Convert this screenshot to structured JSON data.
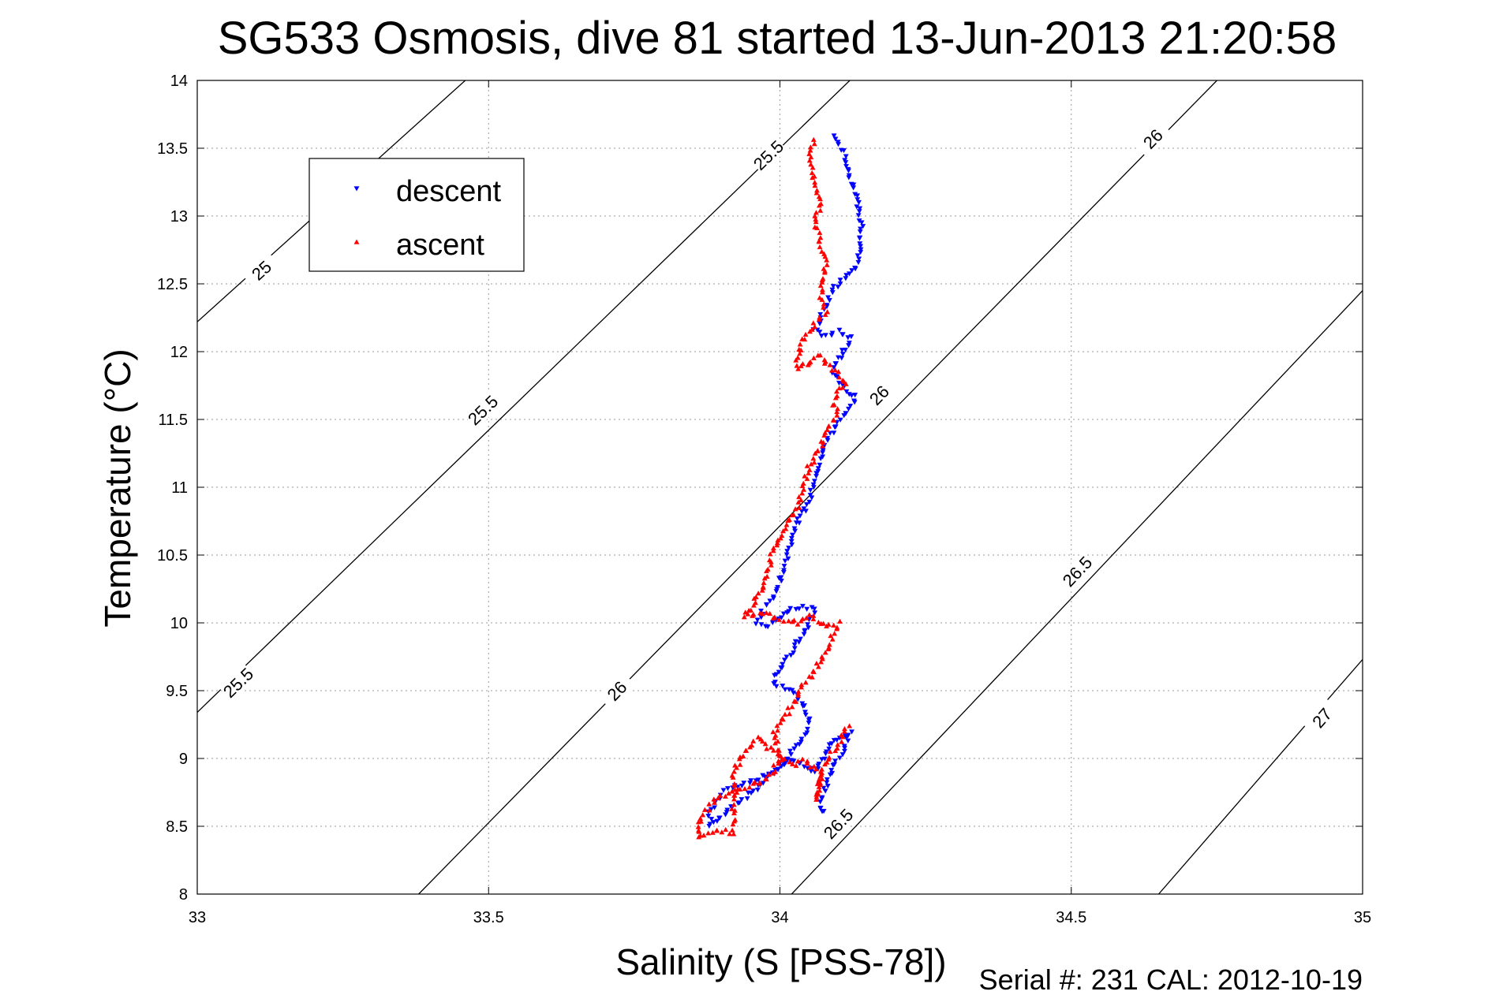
{
  "chart_data": {
    "type": "scatter",
    "title": "SG533 Osmosis, dive 81 started 13-Jun-2013 21:20:58",
    "xlabel": "Salinity (S [PSS-78])",
    "ylabel": "Temperature (°C)",
    "xlim": [
      33,
      35
    ],
    "ylim": [
      8,
      14
    ],
    "xticks": [
      33,
      33.5,
      34,
      34.5,
      35
    ],
    "xtick_labels": [
      "33",
      "33.5",
      "34",
      "34.5",
      "35"
    ],
    "yticks": [
      8,
      8.5,
      9,
      9.5,
      10,
      10.5,
      11,
      11.5,
      12,
      12.5,
      13,
      13.5,
      14
    ],
    "ytick_labels": [
      "8",
      "8.5",
      "9",
      "9.5",
      "10",
      "10.5",
      "11",
      "11.5",
      "12",
      "12.5",
      "13",
      "13.5",
      "14"
    ],
    "grid": true,
    "legend_position": "top-left",
    "footer": "Serial #: 231  CAL: 2012-10-19",
    "contours": [
      {
        "label": "25",
        "points": [
          [
            33,
            12.22
          ],
          [
            33.46,
            14
          ]
        ],
        "label_positions": [
          [
            33.11,
            12.6
          ]
        ]
      },
      {
        "label": "25.5",
        "points": [
          [
            33,
            9.34
          ],
          [
            34.12,
            14
          ]
        ],
        "label_positions": [
          [
            33.07,
            9.56
          ],
          [
            33.49,
            11.57
          ],
          [
            33.98,
            13.45
          ]
        ]
      },
      {
        "label": "26",
        "points": [
          [
            33.38,
            8
          ],
          [
            34.75,
            14
          ]
        ],
        "label_positions": [
          [
            33.72,
            9.5
          ],
          [
            34.17,
            11.68
          ],
          [
            34.64,
            13.57
          ]
        ]
      },
      {
        "label": "26.5",
        "points": [
          [
            34.02,
            8
          ],
          [
            35,
            12.45
          ]
        ],
        "label_positions": [
          [
            34.1,
            8.52
          ],
          [
            34.51,
            10.38
          ]
        ]
      },
      {
        "label": "27",
        "points": [
          [
            34.65,
            8
          ],
          [
            35,
            9.73
          ]
        ],
        "label_positions": [
          [
            34.93,
            9.3
          ]
        ]
      }
    ],
    "series": [
      {
        "name": "descent",
        "marker": "triangle-down",
        "color": "#0000ff",
        "path": [
          [
            34.09,
            13.58
          ],
          [
            34.1,
            13.55
          ],
          [
            34.11,
            13.45
          ],
          [
            34.12,
            13.3
          ],
          [
            34.13,
            13.15
          ],
          [
            34.14,
            12.95
          ],
          [
            34.14,
            12.75
          ],
          [
            34.13,
            12.6
          ],
          [
            34.11,
            12.55
          ],
          [
            34.09,
            12.45
          ],
          [
            34.08,
            12.35
          ],
          [
            34.07,
            12.25
          ],
          [
            34.06,
            12.15
          ],
          [
            34.08,
            12.12
          ],
          [
            34.1,
            12.15
          ],
          [
            34.12,
            12.1
          ],
          [
            34.11,
            12.0
          ],
          [
            34.1,
            11.95
          ],
          [
            34.09,
            11.85
          ],
          [
            34.1,
            11.78
          ],
          [
            34.12,
            11.7
          ],
          [
            34.13,
            11.65
          ],
          [
            34.12,
            11.58
          ],
          [
            34.1,
            11.48
          ],
          [
            34.08,
            11.35
          ],
          [
            34.07,
            11.2
          ],
          [
            34.06,
            11.05
          ],
          [
            34.05,
            10.9
          ],
          [
            34.03,
            10.75
          ],
          [
            34.02,
            10.6
          ],
          [
            34.01,
            10.45
          ],
          [
            34.0,
            10.3
          ],
          [
            33.99,
            10.2
          ],
          [
            33.97,
            10.1
          ],
          [
            33.96,
            10.0
          ],
          [
            33.98,
            9.98
          ],
          [
            34.0,
            10.05
          ],
          [
            34.02,
            10.1
          ],
          [
            34.04,
            10.12
          ],
          [
            34.06,
            10.1
          ],
          [
            34.05,
            10.0
          ],
          [
            34.03,
            9.85
          ],
          [
            34.01,
            9.72
          ],
          [
            33.99,
            9.6
          ],
          [
            33.99,
            9.55
          ],
          [
            34.02,
            9.5
          ],
          [
            34.04,
            9.4
          ],
          [
            34.05,
            9.3
          ],
          [
            34.04,
            9.15
          ],
          [
            34.02,
            9.05
          ],
          [
            34.0,
            8.95
          ],
          [
            33.98,
            8.88
          ],
          [
            33.94,
            8.82
          ],
          [
            33.91,
            8.78
          ],
          [
            33.89,
            8.7
          ],
          [
            33.88,
            8.6
          ],
          [
            33.88,
            8.5
          ],
          [
            34.02,
            9.0
          ],
          [
            34.06,
            8.9
          ],
          [
            34.08,
            9.05
          ],
          [
            34.1,
            9.15
          ],
          [
            34.12,
            9.2
          ],
          [
            34.11,
            9.05
          ],
          [
            34.09,
            8.95
          ],
          [
            34.08,
            8.8
          ],
          [
            34.07,
            8.7
          ],
          [
            34.07,
            8.6
          ],
          [
            34.08,
            8.62
          ]
        ]
      },
      {
        "name": "ascent",
        "marker": "triangle-up",
        "color": "#ff0000",
        "path": [
          [
            34.06,
            13.55
          ],
          [
            34.05,
            13.45
          ],
          [
            34.06,
            13.25
          ],
          [
            34.07,
            13.1
          ],
          [
            34.06,
            12.95
          ],
          [
            34.07,
            12.8
          ],
          [
            34.08,
            12.65
          ],
          [
            34.07,
            12.5
          ],
          [
            34.07,
            12.38
          ],
          [
            34.08,
            12.3
          ],
          [
            34.06,
            12.22
          ],
          [
            34.04,
            12.08
          ],
          [
            34.03,
            11.95
          ],
          [
            34.03,
            11.88
          ],
          [
            34.05,
            11.92
          ],
          [
            34.07,
            11.97
          ],
          [
            34.08,
            11.9
          ],
          [
            34.1,
            11.85
          ],
          [
            34.11,
            11.75
          ],
          [
            34.1,
            11.7
          ],
          [
            34.09,
            11.62
          ],
          [
            34.1,
            11.55
          ],
          [
            34.08,
            11.42
          ],
          [
            34.07,
            11.3
          ],
          [
            34.05,
            11.15
          ],
          [
            34.04,
            11.0
          ],
          [
            34.03,
            10.85
          ],
          [
            34.01,
            10.7
          ],
          [
            33.99,
            10.55
          ],
          [
            33.98,
            10.4
          ],
          [
            33.97,
            10.25
          ],
          [
            33.95,
            10.1
          ],
          [
            33.94,
            10.05
          ],
          [
            33.97,
            10.08
          ],
          [
            34.0,
            10.02
          ],
          [
            34.03,
            10.0
          ],
          [
            34.05,
            10.05
          ],
          [
            34.08,
            9.98
          ],
          [
            34.1,
            10.0
          ],
          [
            34.08,
            9.8
          ],
          [
            34.06,
            9.65
          ],
          [
            34.04,
            9.55
          ],
          [
            34.03,
            9.45
          ],
          [
            34.01,
            9.32
          ],
          [
            33.99,
            9.2
          ],
          [
            34.0,
            9.0
          ],
          [
            33.98,
            8.85
          ],
          [
            33.94,
            8.78
          ],
          [
            33.9,
            8.72
          ],
          [
            33.88,
            8.65
          ],
          [
            33.86,
            8.52
          ],
          [
            33.86,
            8.42
          ],
          [
            33.9,
            8.47
          ],
          [
            33.92,
            8.45
          ],
          [
            33.92,
            8.9
          ],
          [
            33.94,
            9.05
          ],
          [
            33.96,
            9.15
          ],
          [
            34.02,
            8.95
          ],
          [
            34.04,
            8.98
          ],
          [
            34.07,
            8.9
          ],
          [
            34.07,
            8.8
          ],
          [
            34.06,
            8.7
          ],
          [
            34.08,
            9.0
          ],
          [
            34.1,
            9.1
          ],
          [
            34.11,
            9.2
          ],
          [
            34.12,
            9.25
          ]
        ]
      }
    ]
  }
}
